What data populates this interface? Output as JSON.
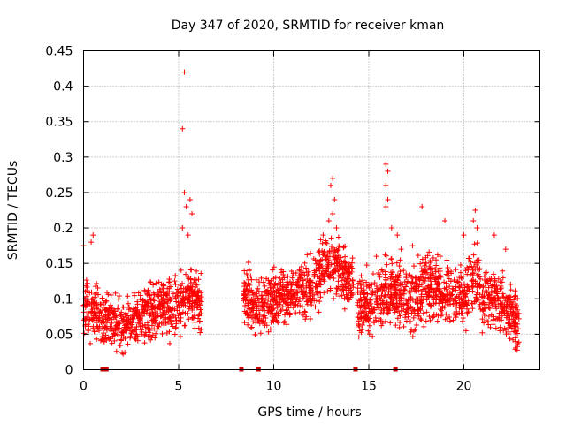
{
  "chart_data": {
    "type": "scatter",
    "title": "Day 347 of 2020, SRMTID for receiver kman",
    "xlabel": "GPS time / hours",
    "ylabel": "SRMTID / TECUs",
    "xlim": [
      0,
      24
    ],
    "ylim": [
      0,
      0.45
    ],
    "xticks": [
      0,
      5,
      10,
      15,
      20
    ],
    "xtick_labels": [
      "0",
      "5",
      "10",
      "15",
      "20"
    ],
    "yticks": [
      0,
      0.05,
      0.1,
      0.15,
      0.2,
      0.25,
      0.3,
      0.35,
      0.4,
      0.45
    ],
    "ytick_labels": [
      "0",
      "0.05",
      "0.1",
      "0.15",
      "0.2",
      "0.25",
      "0.3",
      "0.35",
      "0.4",
      "0.45"
    ],
    "grid": true,
    "marker": "+",
    "color": "#ff0000",
    "gap_marker_color": "#cc0000",
    "gap_markers_x": [
      1.0,
      1.2,
      8.3,
      9.2,
      14.3,
      16.4
    ],
    "segments": [
      {
        "x0": 0.0,
        "x1": 6.2,
        "base": [
          [
            0,
            0.09
          ],
          [
            0.5,
            0.08
          ],
          [
            1.0,
            0.07
          ],
          [
            2.0,
            0.06
          ],
          [
            3.0,
            0.075
          ],
          [
            4.0,
            0.09
          ],
          [
            5.0,
            0.09
          ],
          [
            5.5,
            0.11
          ],
          [
            6.2,
            0.09
          ]
        ],
        "spread": 0.035
      },
      {
        "x0": 8.4,
        "x1": 14.2,
        "base": [
          [
            8.4,
            0.11
          ],
          [
            9.0,
            0.09
          ],
          [
            10.0,
            0.1
          ],
          [
            11.0,
            0.105
          ],
          [
            12.0,
            0.12
          ],
          [
            13.0,
            0.15
          ],
          [
            13.5,
            0.14
          ],
          [
            14.2,
            0.12
          ]
        ],
        "spread": 0.035
      },
      {
        "x0": 14.4,
        "x1": 22.9,
        "base": [
          [
            14.4,
            0.09
          ],
          [
            15.0,
            0.09
          ],
          [
            16.0,
            0.11
          ],
          [
            17.0,
            0.1
          ],
          [
            18.0,
            0.12
          ],
          [
            19.0,
            0.11
          ],
          [
            20.0,
            0.1
          ],
          [
            20.6,
            0.13
          ],
          [
            21.0,
            0.1
          ],
          [
            22.0,
            0.1
          ],
          [
            22.9,
            0.06
          ]
        ],
        "spread": 0.04
      }
    ],
    "spikes": [
      {
        "x": 5.3,
        "y": 0.42
      },
      {
        "x": 5.2,
        "y": 0.34
      },
      {
        "x": 5.3,
        "y": 0.25
      },
      {
        "x": 5.4,
        "y": 0.23
      },
      {
        "x": 5.6,
        "y": 0.24
      },
      {
        "x": 5.7,
        "y": 0.22
      },
      {
        "x": 5.2,
        "y": 0.2
      },
      {
        "x": 5.5,
        "y": 0.19
      },
      {
        "x": 0.5,
        "y": 0.19
      },
      {
        "x": 0.4,
        "y": 0.18
      },
      {
        "x": 0.0,
        "y": 0.175
      },
      {
        "x": 13.1,
        "y": 0.27
      },
      {
        "x": 13.0,
        "y": 0.26
      },
      {
        "x": 13.2,
        "y": 0.24
      },
      {
        "x": 13.1,
        "y": 0.22
      },
      {
        "x": 12.9,
        "y": 0.21
      },
      {
        "x": 13.3,
        "y": 0.2
      },
      {
        "x": 12.6,
        "y": 0.19
      },
      {
        "x": 15.9,
        "y": 0.29
      },
      {
        "x": 16.0,
        "y": 0.28
      },
      {
        "x": 15.9,
        "y": 0.26
      },
      {
        "x": 16.0,
        "y": 0.24
      },
      {
        "x": 15.9,
        "y": 0.23
      },
      {
        "x": 16.2,
        "y": 0.2
      },
      {
        "x": 16.5,
        "y": 0.19
      },
      {
        "x": 17.8,
        "y": 0.23
      },
      {
        "x": 19.0,
        "y": 0.21
      },
      {
        "x": 20.6,
        "y": 0.225
      },
      {
        "x": 20.5,
        "y": 0.21
      },
      {
        "x": 20.7,
        "y": 0.2
      },
      {
        "x": 20.0,
        "y": 0.19
      },
      {
        "x": 21.6,
        "y": 0.19
      },
      {
        "x": 22.2,
        "y": 0.17
      },
      {
        "x": 16.7,
        "y": 0.17
      },
      {
        "x": 17.3,
        "y": 0.175
      },
      {
        "x": 15.4,
        "y": 0.16
      }
    ]
  }
}
